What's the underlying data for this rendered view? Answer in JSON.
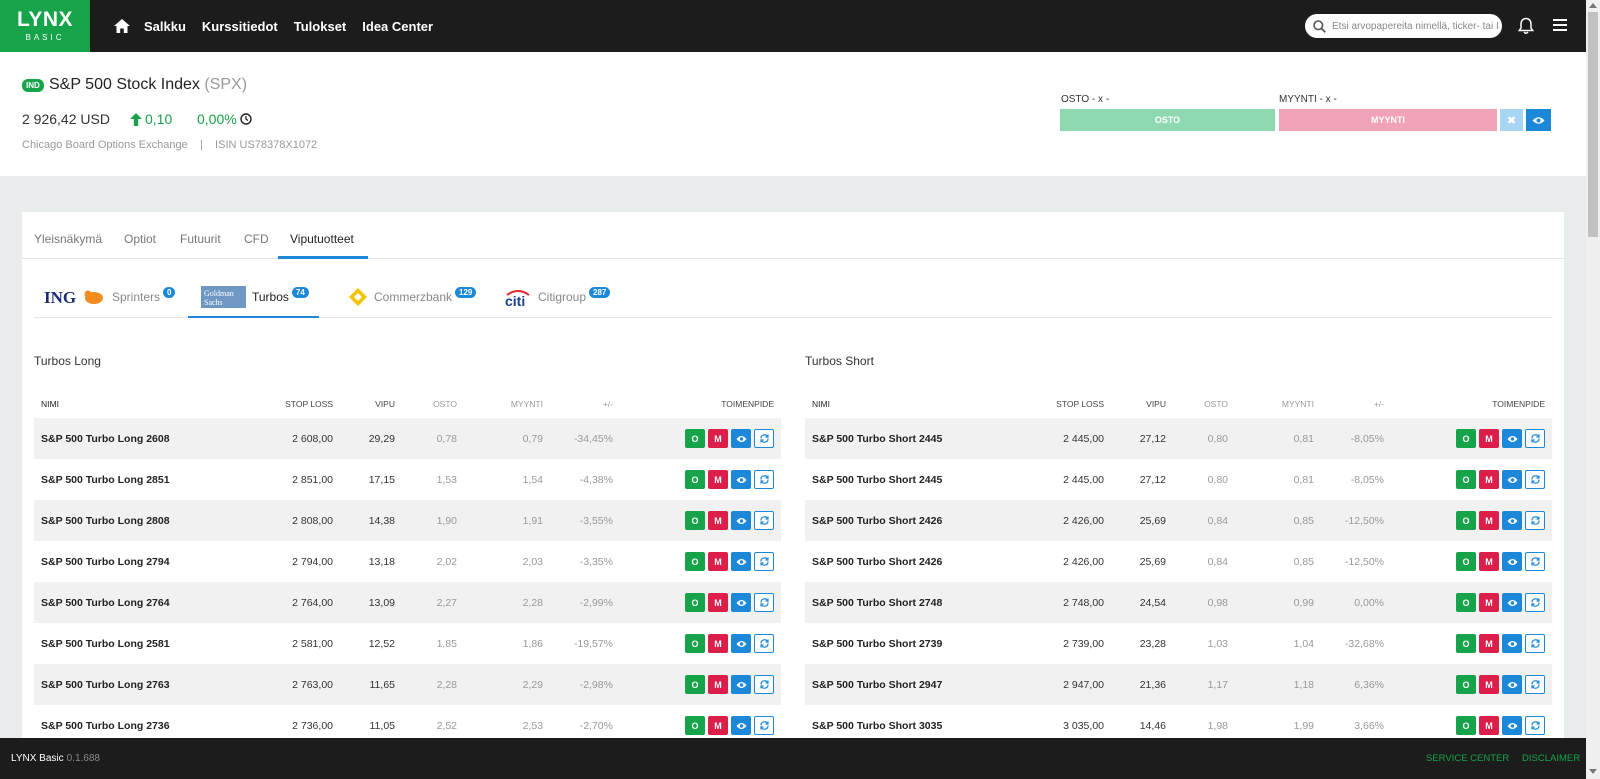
{
  "nav": {
    "logo_main": "LYNX",
    "logo_sub": "BASIC",
    "links": [
      "Salkku",
      "Kurssitiedot",
      "Tulokset",
      "Idea Center"
    ],
    "search_placeholder": "Etsi arvopapereita nimellä, ticker- tai ISIN-"
  },
  "instrument": {
    "badge": "IND",
    "name": "S&P 500 Stock Index",
    "ticker": "(SPX)",
    "price": "2 926,42 USD",
    "change_abs": "0,10",
    "change_pct": "0,00%",
    "exchange": "Chicago Board Options Exchange",
    "separator": "|",
    "isin": "ISIN US78378X1072"
  },
  "order": {
    "buy_label": "OSTO - x -",
    "sell_label": "MYYNTI - x -",
    "buy_button": "OSTO",
    "sell_button": "MYYNTI",
    "close_button": "✖"
  },
  "tabs": [
    "Yleisnäkymä",
    "Optiot",
    "Futuurit",
    "CFD",
    "Viputuotteet"
  ],
  "issuers": [
    {
      "logo": "ING",
      "name": "Sprinters",
      "count": "0"
    },
    {
      "logo": "Goldman Sachs",
      "name": "Turbos",
      "count": "74"
    },
    {
      "logo": "Commerzbank",
      "name": "Commerzbank",
      "count": "129"
    },
    {
      "logo": "citi",
      "name": "Citigroup",
      "count": "287"
    }
  ],
  "columns": {
    "name": "NIMI",
    "stop": "STOP LOSS",
    "vipu": "VIPU",
    "osto": "OSTO",
    "myynti": "MYYNTI",
    "change": "+/-",
    "action": "TOIMENPIDE"
  },
  "action_labels": {
    "o": "O",
    "m": "M"
  },
  "long": {
    "title": "Turbos Long",
    "rows": [
      [
        "S&P 500 Turbo Long 2608",
        "2 608,00",
        "29,29",
        "0,78",
        "0,79",
        "-34,45%"
      ],
      [
        "S&P 500 Turbo Long 2851",
        "2 851,00",
        "17,15",
        "1,53",
        "1,54",
        "-4,38%"
      ],
      [
        "S&P 500 Turbo Long 2808",
        "2 808,00",
        "14,38",
        "1,90",
        "1,91",
        "-3,55%"
      ],
      [
        "S&P 500 Turbo Long 2794",
        "2 794,00",
        "13,18",
        "2,02",
        "2,03",
        "-3,35%"
      ],
      [
        "S&P 500 Turbo Long 2764",
        "2 764,00",
        "13,09",
        "2,27",
        "2,28",
        "-2,99%"
      ],
      [
        "S&P 500 Turbo Long 2581",
        "2 581,00",
        "12,52",
        "1,85",
        "1,86",
        "-19,57%"
      ],
      [
        "S&P 500 Turbo Long 2763",
        "2 763,00",
        "11,65",
        "2,28",
        "2,29",
        "-2,98%"
      ],
      [
        "S&P 500 Turbo Long 2736",
        "2 736,00",
        "11,05",
        "2,52",
        "2,53",
        "-2,70%"
      ]
    ]
  },
  "short": {
    "title": "Turbos Short",
    "rows": [
      [
        "S&P 500 Turbo Short 2445",
        "2 445,00",
        "27,12",
        "0,80",
        "0,81",
        "-8,05%"
      ],
      [
        "S&P 500 Turbo Short 2445",
        "2 445,00",
        "27,12",
        "0,80",
        "0,81",
        "-8,05%"
      ],
      [
        "S&P 500 Turbo Short 2426",
        "2 426,00",
        "25,69",
        "0,84",
        "0,85",
        "-12,50%"
      ],
      [
        "S&P 500 Turbo Short 2426",
        "2 426,00",
        "25,69",
        "0,84",
        "0,85",
        "-12,50%"
      ],
      [
        "S&P 500 Turbo Short 2748",
        "2 748,00",
        "24,54",
        "0,98",
        "0,99",
        "0,00%"
      ],
      [
        "S&P 500 Turbo Short 2739",
        "2 739,00",
        "23,28",
        "1,03",
        "1,04",
        "-32,68%"
      ],
      [
        "S&P 500 Turbo Short 2947",
        "2 947,00",
        "21,36",
        "1,17",
        "1,18",
        "6,36%"
      ],
      [
        "S&P 500 Turbo Short 3035",
        "3 035,00",
        "14,46",
        "1,98",
        "1,99",
        "3,66%"
      ]
    ]
  },
  "footer": {
    "brand": "LYNX Basic",
    "version": "0.1.688",
    "service": "SERVICE CENTER",
    "disclaimer": "DISCLAIMER"
  },
  "colors": {
    "green": "#17a34a",
    "blue": "#1e88d8",
    "red": "#dc1f4a",
    "dark": "#1c1c1c"
  }
}
